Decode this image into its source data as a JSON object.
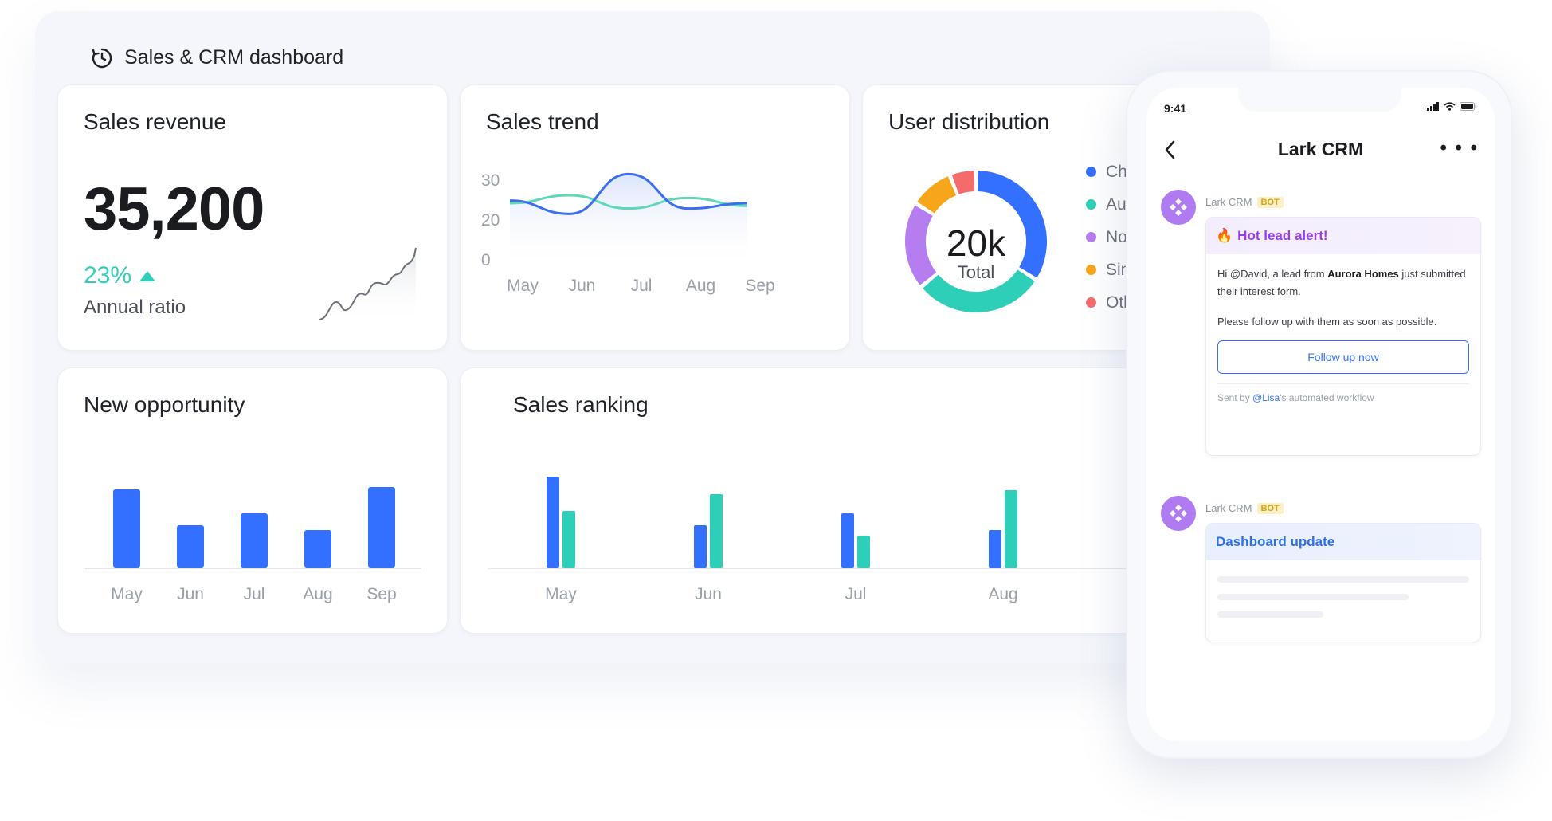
{
  "dashboard": {
    "title": "Sales & CRM dashboard",
    "icon": "clock-refresh-icon"
  },
  "revenue": {
    "title": "Sales revenue",
    "value": "35,200",
    "percent": "23%",
    "label": "Annual ratio",
    "trend_icon": "triangle-up-icon"
  },
  "trend": {
    "title": "Sales trend",
    "chart_data": {
      "type": "line",
      "categories": [
        "May",
        "Jun",
        "Jul",
        "Aug",
        "Sep"
      ],
      "yticks": [
        "30",
        "20",
        "0"
      ],
      "series": [
        {
          "color": "#3b6ff0",
          "values": [
            22,
            17,
            32,
            19,
            21
          ]
        },
        {
          "color": "#5ed8b8",
          "values": [
            21,
            24,
            19,
            23,
            20
          ]
        }
      ]
    }
  },
  "distribution": {
    "title": "User distribution",
    "center_value": "20k",
    "center_label": "Total",
    "chart_data": {
      "type": "pie",
      "slices": [
        {
          "label": "Chi",
          "color": "#3370ff",
          "value": 34
        },
        {
          "label": "Aus",
          "color": "#2ecfb8",
          "value": 30
        },
        {
          "label": "Nor",
          "color": "#b67df0",
          "value": 20
        },
        {
          "label": "Sin",
          "color": "#f7a51a",
          "value": 10
        },
        {
          "label": "Oth",
          "color": "#f46b6b",
          "value": 6
        }
      ]
    }
  },
  "opportunity": {
    "title": "New opportunity",
    "chart_data": {
      "type": "bar",
      "categories": [
        "May",
        "Jun",
        "Jul",
        "Aug",
        "Sep"
      ],
      "values": [
        98,
        53,
        68,
        47,
        101
      ],
      "color": "#3370ff"
    }
  },
  "ranking": {
    "title": "Sales ranking",
    "chart_data": {
      "type": "bar",
      "categories": [
        "May",
        "Jun",
        "Jul",
        "Aug"
      ],
      "series": [
        {
          "color": "#3370ff",
          "values": [
            114,
            53,
            68,
            47
          ]
        },
        {
          "color": "#2ecfb8",
          "values": [
            71,
            92,
            40,
            97
          ]
        }
      ]
    }
  },
  "phone": {
    "time": "9:41",
    "app_title": "Lark CRM",
    "more_label": "• • •",
    "messages": [
      {
        "sender": "Lark CRM",
        "badge": "BOT",
        "header": "Hot lead alert!",
        "header_icon": "fire-icon",
        "body_prefix": "Hi @David, a lead from ",
        "body_bold": "Aurora Homes",
        "body_suffix": " just submitted their interest form.",
        "body_2": "Please follow up with them as soon as possible.",
        "button": "Follow up now",
        "footer_prefix": "Sent by ",
        "footer_mention": "@Lisa",
        "footer_suffix": "'s automated workflow"
      },
      {
        "sender": "Lark CRM",
        "badge": "BOT",
        "header": "Dashboard update"
      }
    ]
  }
}
